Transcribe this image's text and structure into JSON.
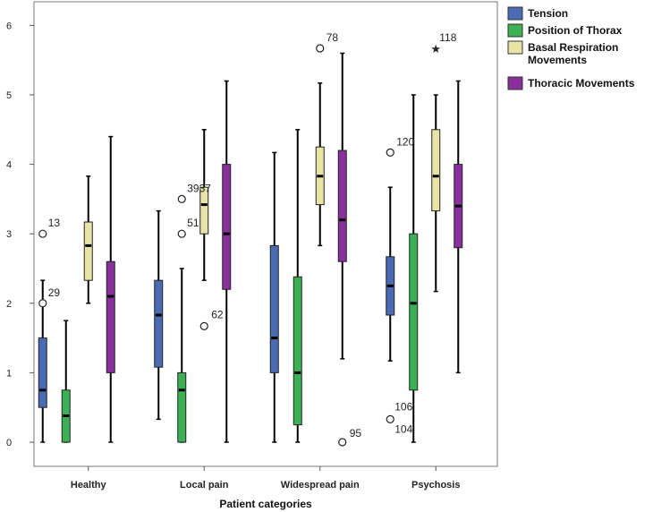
{
  "chart_data": {
    "type": "boxplot",
    "title": "",
    "xlabel": "Patient categories",
    "ylabel": "",
    "ylim": [
      -0.35,
      6.35
    ],
    "yticks": [
      "0",
      "1",
      "2",
      "3",
      "4",
      "5",
      "6"
    ],
    "categories": [
      "Healthy",
      "Local pain",
      "Widespread pain",
      "Psychosis"
    ],
    "legend_position": "right",
    "series": [
      {
        "name": "Tension",
        "color": "#4a6bb3",
        "boxes": [
          {
            "min": 0,
            "q1": 0.5,
            "median": 0.75,
            "q3": 1.5,
            "max": 2.33
          },
          {
            "min": 0.33,
            "q1": 1.08,
            "median": 1.83,
            "q3": 2.33,
            "max": 3.33
          },
          {
            "min": 0,
            "q1": 1.0,
            "median": 1.5,
            "q3": 2.83,
            "max": 4.17
          },
          {
            "min": 1.17,
            "q1": 1.83,
            "median": 2.25,
            "q3": 2.67,
            "max": 3.67
          }
        ]
      },
      {
        "name": "Position of Thorax",
        "color": "#3cb055",
        "boxes": [
          {
            "min": 0,
            "q1": 0,
            "median": 0.38,
            "q3": 0.75,
            "max": 1.75
          },
          {
            "min": 0,
            "q1": 0,
            "median": 0.75,
            "q3": 1.0,
            "max": 2.5
          },
          {
            "min": 0,
            "q1": 0.25,
            "median": 1.0,
            "q3": 2.38,
            "max": 4.5
          },
          {
            "min": 0,
            "q1": 0.75,
            "median": 2.0,
            "q3": 3.0,
            "max": 5.0
          }
        ]
      },
      {
        "name": "Basal Respiration Movements",
        "color": "#e8e4a8",
        "boxes": [
          {
            "min": 2.0,
            "q1": 2.33,
            "median": 2.83,
            "q3": 3.17,
            "max": 3.83
          },
          {
            "min": 2.33,
            "q1": 3.0,
            "median": 3.42,
            "q3": 3.67,
            "max": 4.5
          },
          {
            "min": 2.83,
            "q1": 3.42,
            "median": 3.83,
            "q3": 4.25,
            "max": 5.17
          },
          {
            "min": 2.17,
            "q1": 3.33,
            "median": 3.83,
            "q3": 4.5,
            "max": 5.0
          }
        ]
      },
      {
        "name": "Thoracic Movements",
        "color": "#8a2f9e",
        "boxes": [
          {
            "min": 0,
            "q1": 1.0,
            "median": 2.1,
            "q3": 2.6,
            "max": 4.4
          },
          {
            "min": 0,
            "q1": 2.2,
            "median": 3.0,
            "q3": 4.0,
            "max": 5.2
          },
          {
            "min": 1.2,
            "q1": 2.6,
            "median": 3.2,
            "q3": 4.2,
            "max": 5.6
          },
          {
            "min": 1.0,
            "q1": 2.8,
            "median": 3.4,
            "q3": 4.0,
            "max": 5.2
          }
        ]
      }
    ],
    "outliers": [
      {
        "category": "Healthy",
        "series": "Tension",
        "value": 3.0,
        "label": "13",
        "symbol": "circle"
      },
      {
        "category": "Healthy",
        "series": "Tension",
        "value": 2.0,
        "label": "29",
        "symbol": "circle"
      },
      {
        "category": "Local pain",
        "series": "Position of Thorax",
        "value": 3.5,
        "label": "3937",
        "symbol": "circle"
      },
      {
        "category": "Local pain",
        "series": "Position of Thorax",
        "value": 3.0,
        "label": "51",
        "symbol": "circle"
      },
      {
        "category": "Local pain",
        "series": "Basal Respiration Movements",
        "value": 1.67,
        "label": "62",
        "symbol": "circle"
      },
      {
        "category": "Widespread pain",
        "series": "Basal Respiration Movements",
        "value": 5.67,
        "label": "78",
        "symbol": "circle"
      },
      {
        "category": "Widespread pain",
        "series": "Thoracic Movements",
        "value": 0,
        "label": "95",
        "symbol": "circle"
      },
      {
        "category": "Psychosis",
        "series": "Basal Respiration Movements",
        "value": 5.67,
        "label": "118",
        "symbol": "star"
      },
      {
        "category": "Psychosis",
        "series": "Tension",
        "value": 4.17,
        "label": "120",
        "symbol": "circle"
      },
      {
        "category": "Psychosis",
        "series": "Tension",
        "value": 0.33,
        "label": "106",
        "symbol": "circle"
      },
      {
        "category": "Psychosis",
        "series": "Tension",
        "value": 0.33,
        "label": "104",
        "symbol": "none"
      }
    ]
  }
}
